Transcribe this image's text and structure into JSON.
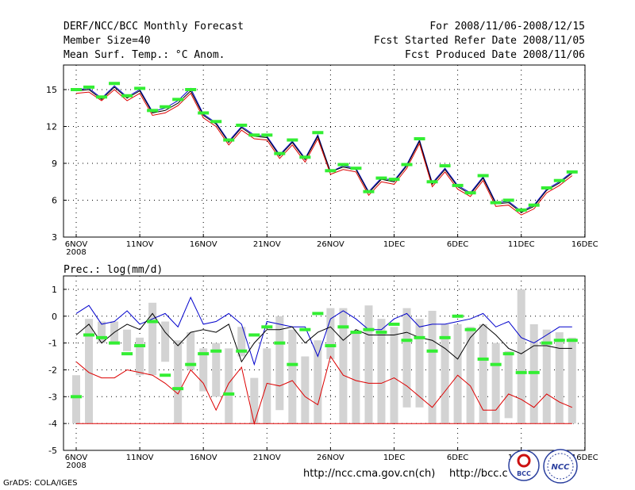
{
  "header": {
    "line1_left": "DERF/NCC/BCC Monthly Forecast",
    "line2_left": "Member Size=40",
    "line3_left": "Mean Surf. Temp.: °C Anom.",
    "line1_right": "For 2008/11/06-2008/12/15",
    "line2_right": "Fcst Started Refer Date 2008/11/05",
    "line3_right": "Fcst Produced Date 2008/11/06"
  },
  "footer": {
    "grads": "GrADS: COLA/IGES",
    "url1": "http://ncc.cma.gov.cn(ch)",
    "url2": "http://bcc.c",
    "logo1": "BCC",
    "logo2": "NCC"
  },
  "colors": {
    "blue": "#0000cc",
    "red": "#dd0000",
    "black": "#000000",
    "green": "#33ee33",
    "bar": "#d3d3d3",
    "grid": "#000000"
  },
  "chart_data": [
    {
      "type": "line",
      "title": "Mean Surf. Temp.: °C Anom.",
      "xlabel": "",
      "ylabel": "",
      "ylim": [
        3,
        17
      ],
      "yticks": [
        3,
        6,
        9,
        12,
        15
      ],
      "xtick_labels": [
        "6NOV\n2008",
        "11NOV",
        "16NOV",
        "21NOV",
        "26NOV",
        "1DEC",
        "6DEC",
        "11DEC",
        "16DEC"
      ],
      "x": [
        0,
        1,
        2,
        3,
        4,
        5,
        6,
        7,
        8,
        9,
        10,
        11,
        12,
        13,
        14,
        15,
        16,
        17,
        18,
        19,
        20,
        21,
        22,
        23,
        24,
        25,
        26,
        27,
        28,
        29,
        30,
        31,
        32,
        33,
        34,
        35,
        36,
        37,
        38,
        39
      ],
      "series": [
        {
          "name": "max",
          "color": "blue",
          "values": [
            15.0,
            15.1,
            14.3,
            15.3,
            14.4,
            15.0,
            13.2,
            13.5,
            14.1,
            15.1,
            13.0,
            12.3,
            10.8,
            12.0,
            11.3,
            11.2,
            9.7,
            10.8,
            9.4,
            11.3,
            8.3,
            8.8,
            8.6,
            6.7,
            7.8,
            7.6,
            8.9,
            10.9,
            7.4,
            8.6,
            7.2,
            6.6,
            7.9,
            5.8,
            5.9,
            5.1,
            5.6,
            6.9,
            7.5,
            8.3
          ]
        },
        {
          "name": "mean",
          "color": "black",
          "values": [
            14.9,
            15.0,
            14.2,
            15.2,
            14.3,
            14.9,
            13.1,
            13.3,
            13.9,
            14.9,
            12.9,
            12.2,
            10.7,
            11.9,
            11.2,
            11.1,
            9.6,
            10.7,
            9.3,
            11.2,
            8.3,
            8.7,
            8.5,
            6.6,
            7.7,
            7.5,
            8.8,
            10.8,
            7.3,
            8.5,
            7.1,
            6.5,
            7.8,
            5.7,
            5.8,
            5.0,
            5.5,
            6.8,
            7.4,
            8.2
          ]
        },
        {
          "name": "min",
          "color": "red",
          "values": [
            14.7,
            14.8,
            14.1,
            15.0,
            14.1,
            14.7,
            12.9,
            13.1,
            13.7,
            14.7,
            12.7,
            12.0,
            10.5,
            11.7,
            11.0,
            10.9,
            9.4,
            10.5,
            9.1,
            11.0,
            8.1,
            8.5,
            8.3,
            6.4,
            7.5,
            7.3,
            8.6,
            10.6,
            7.1,
            8.3,
            6.9,
            6.3,
            7.6,
            5.5,
            5.6,
            4.8,
            5.3,
            6.6,
            7.2,
            8.0
          ]
        },
        {
          "name": "obs-mark",
          "color": "green",
          "values": [
            15.0,
            15.2,
            14.4,
            15.5,
            14.5,
            15.1,
            13.3,
            13.6,
            14.2,
            15.0,
            13.1,
            12.4,
            10.9,
            12.1,
            11.3,
            11.3,
            9.8,
            10.9,
            9.5,
            11.5,
            8.4,
            8.9,
            8.6,
            6.7,
            7.8,
            7.7,
            8.9,
            11.0,
            7.5,
            8.8,
            7.2,
            6.6,
            8.0,
            5.8,
            6.0,
            5.2,
            5.6,
            7.0,
            7.6,
            8.3
          ]
        }
      ]
    },
    {
      "type": "bar",
      "title": "Prec.: log(mm/d)",
      "xlabel": "",
      "ylabel": "",
      "ylim": [
        -5,
        1.5
      ],
      "yticks": [
        -5,
        -4,
        -3,
        -2,
        -1,
        0,
        1
      ],
      "xtick_labels": [
        "6NOV\n2008",
        "11NOV",
        "16NOV",
        "21NOV",
        "26NOV",
        "1DEC",
        "6DEC",
        "11DEC",
        "16DEC"
      ],
      "x": [
        0,
        1,
        2,
        3,
        4,
        5,
        6,
        7,
        8,
        9,
        10,
        11,
        12,
        13,
        14,
        15,
        16,
        17,
        18,
        19,
        20,
        21,
        22,
        23,
        24,
        25,
        26,
        27,
        28,
        29,
        30,
        31,
        32,
        33,
        34,
        35,
        36,
        37,
        38,
        39
      ],
      "bar_low": [
        -4.0,
        -4.0,
        -1.0,
        -1.0,
        -1.3,
        -2.2,
        -2.2,
        -1.7,
        -4.0,
        -2.0,
        -2.8,
        -3.0,
        -4.0,
        -1.5,
        -4.0,
        -4.0,
        -3.5,
        -4.0,
        -4.0,
        -4.0,
        -1.6,
        -4.0,
        -4.0,
        -4.0,
        -4.0,
        -4.0,
        -3.4,
        -3.4,
        -4.0,
        -4.0,
        -4.0,
        -4.0,
        -4.0,
        -4.0,
        -3.8,
        -4.0,
        -4.0,
        -4.0,
        -4.0,
        -4.0
      ],
      "bar_high": [
        -2.2,
        -0.1,
        -0.2,
        -0.2,
        -0.5,
        -0.8,
        0.5,
        -0.2,
        -0.9,
        -0.6,
        -1.2,
        -1.0,
        -1.2,
        -0.4,
        -2.3,
        -1.2,
        0.0,
        -0.5,
        -1.5,
        -0.9,
        0.3,
        0.3,
        -0.6,
        0.4,
        -0.1,
        -0.4,
        0.3,
        -0.1,
        0.2,
        -0.3,
        -0.3,
        -0.4,
        -0.3,
        -1.0,
        -1.3,
        1.0,
        -0.3,
        -0.5,
        -0.6,
        -0.8
      ],
      "series": [
        {
          "name": "max",
          "color": "blue",
          "values": [
            0.1,
            0.4,
            -0.3,
            -0.2,
            0.2,
            -0.3,
            -0.1,
            0.1,
            -0.4,
            0.7,
            -0.3,
            -0.2,
            0.1,
            -0.3,
            -1.8,
            -0.2,
            -0.3,
            -0.4,
            -0.4,
            -1.5,
            -0.1,
            0.2,
            -0.1,
            -0.5,
            -0.5,
            -0.1,
            0.1,
            -0.4,
            -0.3,
            -0.3,
            -0.2,
            -0.1,
            0.1,
            -0.4,
            -0.2,
            -0.8,
            -1.0,
            -0.7,
            -0.4,
            -0.4
          ]
        },
        {
          "name": "mean",
          "color": "black",
          "values": [
            -0.7,
            -0.3,
            -1.0,
            -0.6,
            -0.3,
            -0.5,
            0.1,
            -0.6,
            -1.1,
            -0.6,
            -0.5,
            -0.6,
            -0.3,
            -1.7,
            -1.0,
            -0.5,
            -0.5,
            -0.4,
            -1.0,
            -0.6,
            -0.4,
            -0.9,
            -0.5,
            -0.7,
            -0.7,
            -0.7,
            -0.6,
            -0.8,
            -0.9,
            -1.2,
            -1.6,
            -0.8,
            -0.3,
            -0.7,
            -1.2,
            -1.4,
            -1.1,
            -1.1,
            -1.2,
            -1.2
          ]
        },
        {
          "name": "min",
          "color": "red",
          "values": [
            -1.7,
            -2.1,
            -2.3,
            -2.3,
            -2.0,
            -2.1,
            -2.2,
            -2.5,
            -2.9,
            -2.0,
            -2.5,
            -3.5,
            -2.5,
            -1.9,
            -4.0,
            -2.5,
            -2.6,
            -2.4,
            -3.0,
            -3.3,
            -1.5,
            -2.2,
            -2.4,
            -2.5,
            -2.5,
            -2.3,
            -2.6,
            -3.0,
            -3.4,
            -2.8,
            -2.2,
            -2.6,
            -3.5,
            -3.5,
            -2.9,
            -3.1,
            -3.4,
            -2.9,
            -3.2,
            -3.4
          ]
        },
        {
          "name": "floor",
          "color": "red",
          "values": [
            -4,
            -4,
            -4,
            -4,
            -4,
            -4,
            -4,
            -4,
            -4,
            -4,
            -4,
            -4,
            -4,
            -4,
            -4,
            -4,
            -4,
            -4,
            -4,
            -4,
            -4,
            -4,
            -4,
            -4,
            -4,
            -4,
            -4,
            -4,
            -4,
            -4,
            -4,
            -4,
            -4,
            -4,
            -4,
            -4,
            -4,
            -4,
            -4,
            -4
          ]
        },
        {
          "name": "obs-mark",
          "color": "green",
          "values": [
            -3.0,
            -0.7,
            -0.8,
            -1.0,
            -1.4,
            -1.1,
            -0.2,
            -2.2,
            -2.7,
            -1.8,
            -1.4,
            -1.3,
            -2.9,
            -1.3,
            -0.7,
            -0.4,
            -1.0,
            -1.8,
            -0.5,
            0.1,
            -1.1,
            -0.4,
            -0.6,
            -0.5,
            -0.6,
            -0.3,
            -0.9,
            -0.8,
            -1.3,
            -0.8,
            0.0,
            -0.5,
            -1.6,
            -1.8,
            -1.4,
            -2.1,
            -2.1,
            -1.0,
            -0.9,
            -0.9
          ]
        }
      ],
      "label": "Prec.: log(mm/d)"
    }
  ]
}
